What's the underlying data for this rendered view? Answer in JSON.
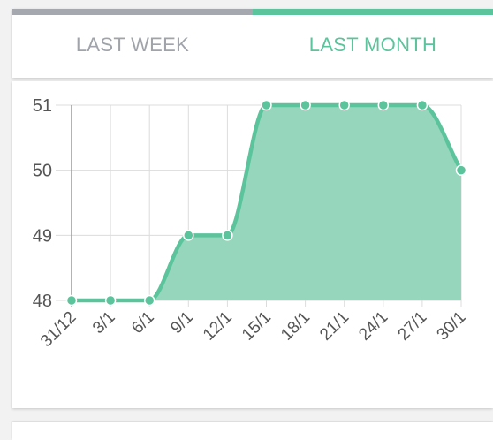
{
  "tabs": [
    {
      "label": "LAST WEEK",
      "active": false
    },
    {
      "label": "LAST MONTH",
      "active": true
    }
  ],
  "colors": {
    "accent": "#5cc49c",
    "fill": "#96d6bc",
    "inactive_text": "#a0a4aa",
    "inactive_indicator": "#a6a8b0",
    "grid": "#dcdcdc",
    "axis_text": "#555555"
  },
  "chart_data": {
    "type": "area",
    "title": "",
    "xlabel": "",
    "ylabel": "",
    "categories": [
      "31/12",
      "3/1",
      "6/1",
      "9/1",
      "12/1",
      "15/1",
      "18/1",
      "21/1",
      "24/1",
      "27/1",
      "30/1"
    ],
    "series": [
      {
        "values": [
          48,
          48,
          48,
          49,
          49,
          51,
          51,
          51,
          51,
          51,
          50
        ]
      }
    ],
    "yticks": [
      48,
      49,
      50,
      51
    ],
    "ylim": [
      48,
      51
    ],
    "grid": true,
    "smooth": true,
    "markers": true
  }
}
